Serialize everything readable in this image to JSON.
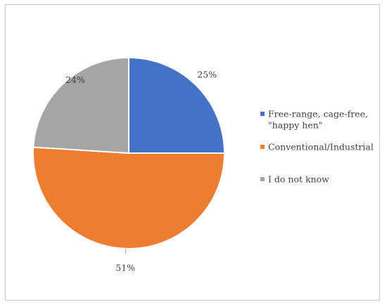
{
  "chart_data": {
    "type": "pie",
    "title": "",
    "slices": [
      {
        "label": "Free-range, cage-free, \"happy hen\"",
        "value": 25,
        "data_label": "25%",
        "color": "#4472C4"
      },
      {
        "label": "Conventional/Industrial",
        "value": 51,
        "data_label": "51%",
        "color": "#ED7D31"
      },
      {
        "label": "I do not know",
        "value": 24,
        "data_label": "24%",
        "color": "#A5A5A5"
      }
    ],
    "legend": {
      "position": "right",
      "entries": [
        {
          "lines": [
            "Free-range, cage-free,",
            "\"happy hen\""
          ]
        },
        {
          "lines": [
            "Conventional/Industrial"
          ]
        },
        {
          "lines": [
            "I do not know"
          ]
        }
      ]
    }
  }
}
